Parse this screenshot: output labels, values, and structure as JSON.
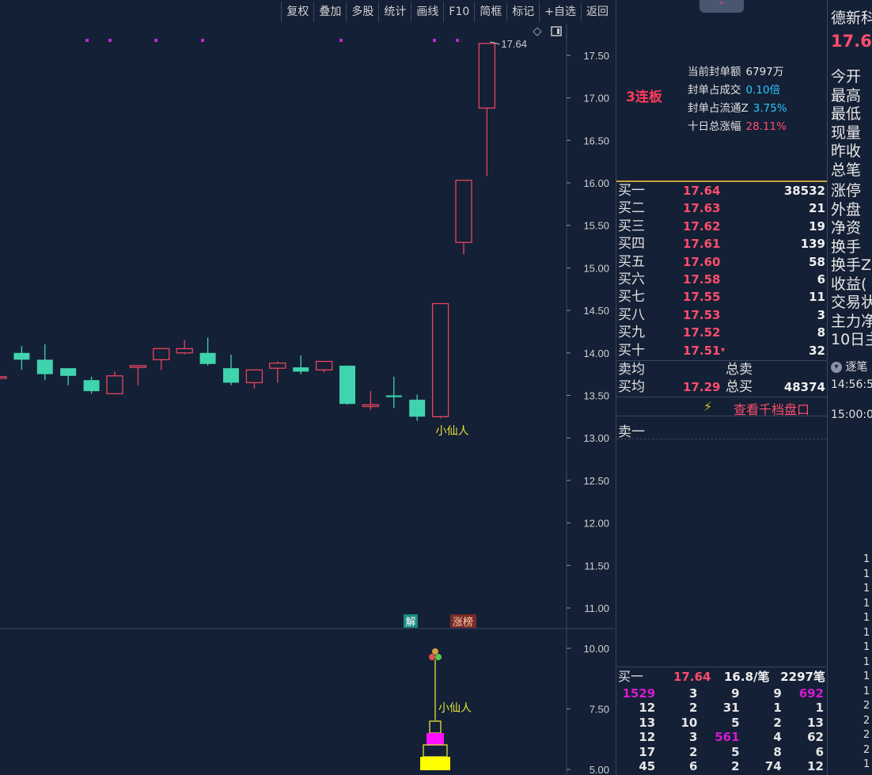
{
  "toolbar": {
    "buttons": [
      "复权",
      "叠加",
      "多股",
      "统计",
      "画线",
      "F10",
      "简框",
      "标记",
      "+自选",
      "返回"
    ]
  },
  "chart_data": {
    "type": "candlestick",
    "price_axis": {
      "ylim": [
        10.5,
        17.8
      ],
      "ticks": [
        "17.50",
        "17.00",
        "16.50",
        "16.00",
        "15.50",
        "15.00",
        "14.50",
        "14.00",
        "13.50",
        "13.00",
        "12.50",
        "12.00",
        "11.50",
        "11.00"
      ]
    },
    "volume_axis": {
      "ticks": [
        "10.00",
        "7.50",
        "5.00"
      ]
    },
    "candles": [
      {
        "o": 13.72,
        "h": 13.75,
        "l": 13.7,
        "c": 13.72
      },
      {
        "o": 14.0,
        "h": 14.08,
        "l": 13.8,
        "c": 13.92
      },
      {
        "o": 13.92,
        "h": 14.1,
        "l": 13.68,
        "c": 13.75
      },
      {
        "o": 13.82,
        "h": 13.82,
        "l": 13.62,
        "c": 13.73
      },
      {
        "o": 13.68,
        "h": 13.72,
        "l": 13.52,
        "c": 13.55
      },
      {
        "o": 13.52,
        "h": 13.78,
        "l": 13.52,
        "c": 13.73
      },
      {
        "o": 13.83,
        "h": 13.85,
        "l": 13.62,
        "c": 13.85
      },
      {
        "o": 13.92,
        "h": 14.05,
        "l": 13.8,
        "c": 14.05
      },
      {
        "o": 14.0,
        "h": 14.15,
        "l": 13.98,
        "c": 14.05
      },
      {
        "o": 14.0,
        "h": 14.18,
        "l": 13.85,
        "c": 13.87
      },
      {
        "o": 13.82,
        "h": 13.98,
        "l": 13.62,
        "c": 13.65
      },
      {
        "o": 13.65,
        "h": 13.8,
        "l": 13.58,
        "c": 13.8
      },
      {
        "o": 13.82,
        "h": 13.9,
        "l": 13.65,
        "c": 13.88
      },
      {
        "o": 13.83,
        "h": 13.97,
        "l": 13.75,
        "c": 13.78
      },
      {
        "o": 13.8,
        "h": 13.9,
        "l": 13.77,
        "c": 13.9
      },
      {
        "o": 13.85,
        "h": 13.85,
        "l": 13.39,
        "c": 13.4
      },
      {
        "o": 13.37,
        "h": 13.55,
        "l": 13.33,
        "c": 13.39
      },
      {
        "o": 13.5,
        "h": 13.72,
        "l": 13.35,
        "c": 13.48
      },
      {
        "o": 13.45,
        "h": 13.51,
        "l": 13.2,
        "c": 13.25
      },
      {
        "o": 13.25,
        "h": 14.58,
        "l": 13.23,
        "c": 14.58
      },
      {
        "o": 15.3,
        "h": 16.03,
        "l": 15.16,
        "c": 16.03
      },
      {
        "o": 16.88,
        "h": 17.64,
        "l": 16.08,
        "c": 17.64
      }
    ],
    "annotations": {
      "max_label": "17.64",
      "pattern_label": "小仙人",
      "pattern_label_2": "小仙人",
      "tag_jie": "解",
      "tag_zhangbang": "涨榜"
    }
  },
  "mid": {
    "limit_tag": "3连板",
    "seal": [
      {
        "k": "当前封单额",
        "v": "6797万",
        "color": "white"
      },
      {
        "k": "封单占成交",
        "v": "0.10倍",
        "color": "blue"
      },
      {
        "k": "封单占流通Z",
        "v": "3.75%",
        "color": "blue"
      },
      {
        "k": "十日总涨幅",
        "v": "28.11%",
        "color": "red"
      }
    ],
    "book": [
      {
        "label": "买一",
        "price": "17.64",
        "vol": "38532"
      },
      {
        "label": "买二",
        "price": "17.63",
        "vol": "21"
      },
      {
        "label": "买三",
        "price": "17.62",
        "vol": "19"
      },
      {
        "label": "买四",
        "price": "17.61",
        "vol": "139"
      },
      {
        "label": "买五",
        "price": "17.60",
        "vol": "58"
      },
      {
        "label": "买六",
        "price": "17.58",
        "vol": "6"
      },
      {
        "label": "买七",
        "price": "17.55",
        "vol": "11"
      },
      {
        "label": "买八",
        "price": "17.53",
        "vol": "3"
      },
      {
        "label": "买九",
        "price": "17.52",
        "vol": "8"
      },
      {
        "label": "买十",
        "price": "17.51",
        "vol": "32"
      }
    ],
    "sell_avg_label": "卖均",
    "sell_total_label": "总卖",
    "buy_avg_label": "买均",
    "buy_avg_price": "17.29",
    "buy_total_label": "总买",
    "buy_total_vol": "48374",
    "view_thousand": "查看千档盘口",
    "sell1": "卖一",
    "queue_header": {
      "label": "买一",
      "price": "17.64",
      "per": "16.8/笔",
      "count": "2297笔"
    },
    "queue": [
      [
        "1529",
        "3",
        "9",
        "9",
        "692"
      ],
      [
        "12",
        "2",
        "31",
        "1",
        "1"
      ],
      [
        "13",
        "10",
        "5",
        "2",
        "13"
      ],
      [
        "12",
        "3",
        "561",
        "4",
        "62"
      ],
      [
        "17",
        "2",
        "5",
        "8",
        "6"
      ],
      [
        "45",
        "6",
        "2",
        "74",
        "12"
      ]
    ]
  },
  "right": {
    "name": "德新科",
    "price": "17.64",
    "labels": [
      "今开",
      "最高",
      "最低",
      "现量",
      "昨收",
      "总笔"
    ],
    "labels2": [
      "涨停",
      "外盘",
      "净资",
      "换手",
      "换手Z",
      "收益(",
      "交易状",
      "主力净",
      "10日主"
    ],
    "tick_header": "逐笔",
    "time1": "14:56:5",
    "time2": "15:00:0",
    "digits": [
      "1",
      "1",
      "1",
      "1",
      "1",
      "1",
      "1",
      "1",
      "1",
      "1",
      "2",
      "2",
      "2",
      "2",
      "1"
    ]
  }
}
